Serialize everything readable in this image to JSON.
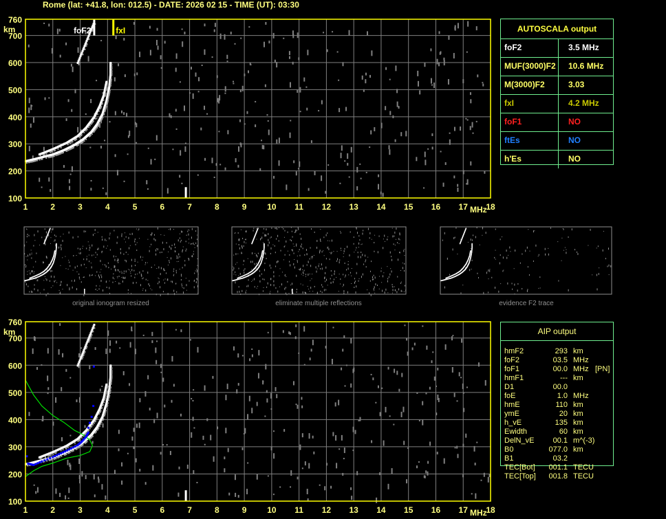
{
  "title": "Rome (lat: +41.8, lon: 012.5) - DATE: 2026 02 15 - TIME (UT): 03:30",
  "colors": {
    "axis": "#ffff00",
    "grid": "#808080",
    "trace": "#ffffff",
    "noise": "#808080",
    "profile": "#0000ff",
    "model": "#00e000",
    "table_border": "#70f090"
  },
  "autoscala": {
    "header": "AUTOSCALA output",
    "rows": [
      {
        "label": "foF2",
        "value": "3.5 MHz",
        "color": "#ffffff"
      },
      {
        "label": "MUF(3000)F2",
        "value": "10.6 MHz",
        "color": "#ffff66"
      },
      {
        "label": "M(3000)F2",
        "value": "3.03",
        "color": "#ffff66"
      },
      {
        "label": "fxI",
        "value": "4.2 MHz",
        "color": "#c8c800"
      },
      {
        "label": "foF1",
        "value": "NO",
        "color": "#ff2020"
      },
      {
        "label": "ftEs",
        "value": "NO",
        "color": "#2080ff"
      },
      {
        "label": "h'Es",
        "value": "NO",
        "color": "#ffff66"
      }
    ]
  },
  "aip": {
    "header": "AIP output",
    "rows": [
      [
        "hmF2",
        "293",
        "km",
        ""
      ],
      [
        "foF2",
        "03.5",
        "MHz",
        ""
      ],
      [
        "foF1",
        "00.0",
        "MHz",
        "[PN]"
      ],
      [
        "hmF1",
        "---",
        "km",
        ""
      ],
      [
        "D1",
        "00.0",
        "",
        ""
      ],
      [
        "foE",
        "1.0",
        "MHz",
        ""
      ],
      [
        "hmE",
        "110",
        "km",
        ""
      ],
      [
        "ymE",
        "20",
        "km",
        ""
      ],
      [
        "h_vE",
        "135",
        "km",
        ""
      ],
      [
        "Ewidth",
        "60",
        "km",
        ""
      ],
      [
        "DelN_vE",
        "00.1",
        "m^(-3)",
        ""
      ],
      [
        "B0",
        "077.0",
        "km",
        ""
      ],
      [
        "B1",
        "03.2",
        "",
        ""
      ],
      [
        "TEC[Bot]",
        "001.1",
        "TECU",
        ""
      ],
      [
        "TEC[Top]",
        "001.8",
        "TECU",
        ""
      ]
    ]
  },
  "thumbnails": [
    {
      "caption": "original ionogram resized"
    },
    {
      "caption": "eliminate multiple reflections"
    },
    {
      "caption": "evidence F2 trace"
    }
  ],
  "chart_data": [
    {
      "type": "scatter",
      "name_shown": "",
      "xlabel": "MHz",
      "ylabel": "km",
      "xlim": [
        1,
        18
      ],
      "ylim": [
        100,
        760
      ],
      "xticks": [
        "1",
        "2",
        "3",
        "4",
        "5",
        "6",
        "7",
        "8",
        "9",
        "10",
        "11",
        "12",
        "13",
        "14",
        "15",
        "16",
        "17",
        "18"
      ],
      "yticks": [
        "100",
        "200",
        "300",
        "400",
        "500",
        "600",
        "700",
        "760"
      ],
      "grid": true,
      "markers": [
        {
          "label": "foF2",
          "freq": 3.5,
          "color": "#ffffff"
        },
        {
          "label": "fxI",
          "freq": 4.2,
          "color": "#ffff00"
        }
      ],
      "o_trace": [
        [
          1.0,
          237
        ],
        [
          1.3,
          244
        ],
        [
          1.6,
          252
        ],
        [
          2.0,
          262
        ],
        [
          2.4,
          278
        ],
        [
          2.8,
          298
        ],
        [
          3.1,
          318
        ],
        [
          3.4,
          345
        ],
        [
          3.6,
          372
        ],
        [
          3.8,
          410
        ],
        [
          3.95,
          460
        ],
        [
          4.05,
          510
        ],
        [
          4.1,
          560
        ],
        [
          4.1,
          600
        ]
      ],
      "x_trace": [
        [
          1.5,
          262
        ],
        [
          2.0,
          282
        ],
        [
          2.5,
          305
        ],
        [
          2.9,
          330
        ],
        [
          3.2,
          360
        ],
        [
          3.5,
          400
        ],
        [
          3.7,
          440
        ],
        [
          3.85,
          480
        ],
        [
          3.95,
          530
        ]
      ],
      "second_hop_trace": [
        [
          2.9,
          600
        ],
        [
          3.1,
          650
        ],
        [
          3.3,
          700
        ],
        [
          3.5,
          750
        ]
      ],
      "spike": {
        "freq": 6.85,
        "from": 100,
        "to": 140
      }
    },
    {
      "type": "scatter",
      "xlabel": "MHz",
      "ylabel": "km",
      "xlim": [
        1,
        18
      ],
      "ylim": [
        100,
        760
      ],
      "xticks": [
        "1",
        "2",
        "3",
        "4",
        "5",
        "6",
        "7",
        "8",
        "9",
        "10",
        "11",
        "12",
        "13",
        "14",
        "15",
        "16",
        "17",
        "18"
      ],
      "yticks": [
        "100",
        "200",
        "300",
        "400",
        "500",
        "600",
        "700",
        "760"
      ],
      "grid": true,
      "o_trace": [
        [
          1.0,
          237
        ],
        [
          1.3,
          244
        ],
        [
          1.6,
          252
        ],
        [
          2.0,
          262
        ],
        [
          2.4,
          278
        ],
        [
          2.8,
          298
        ],
        [
          3.1,
          318
        ],
        [
          3.4,
          345
        ],
        [
          3.6,
          372
        ],
        [
          3.8,
          410
        ],
        [
          3.95,
          460
        ],
        [
          4.05,
          510
        ],
        [
          4.1,
          560
        ],
        [
          4.1,
          600
        ]
      ],
      "x_trace": [
        [
          1.5,
          262
        ],
        [
          2.0,
          282
        ],
        [
          2.5,
          305
        ],
        [
          2.9,
          330
        ],
        [
          3.2,
          360
        ],
        [
          3.5,
          400
        ],
        [
          3.7,
          440
        ],
        [
          3.85,
          480
        ],
        [
          3.95,
          530
        ]
      ],
      "second_hop_trace": [
        [
          2.9,
          600
        ],
        [
          3.1,
          650
        ],
        [
          3.3,
          700
        ],
        [
          3.5,
          750
        ]
      ],
      "profile_points": [
        [
          1.05,
          265
        ],
        [
          1.1,
          238
        ],
        [
          1.3,
          233
        ],
        [
          1.6,
          246
        ],
        [
          2.0,
          262
        ],
        [
          2.3,
          276
        ],
        [
          2.6,
          290
        ],
        [
          2.9,
          305
        ],
        [
          3.05,
          318
        ],
        [
          3.2,
          335
        ],
        [
          3.3,
          352
        ],
        [
          3.3,
          370
        ],
        [
          3.35,
          388
        ],
        [
          3.42,
          410
        ],
        [
          3.48,
          450
        ],
        [
          3.5,
          595
        ]
      ],
      "model_curve": [
        [
          1.0,
          545
        ],
        [
          1.3,
          490
        ],
        [
          1.6,
          450
        ],
        [
          2.0,
          415
        ],
        [
          2.4,
          390
        ],
        [
          2.8,
          360
        ],
        [
          3.1,
          345
        ],
        [
          3.35,
          325
        ],
        [
          3.45,
          305
        ],
        [
          3.35,
          282
        ],
        [
          3.0,
          268
        ],
        [
          2.5,
          258
        ],
        [
          2.0,
          240
        ],
        [
          1.6,
          228
        ],
        [
          1.3,
          212
        ],
        [
          1.0,
          190
        ]
      ],
      "spike": {
        "freq": 6.85,
        "from": 100,
        "to": 140
      }
    }
  ]
}
